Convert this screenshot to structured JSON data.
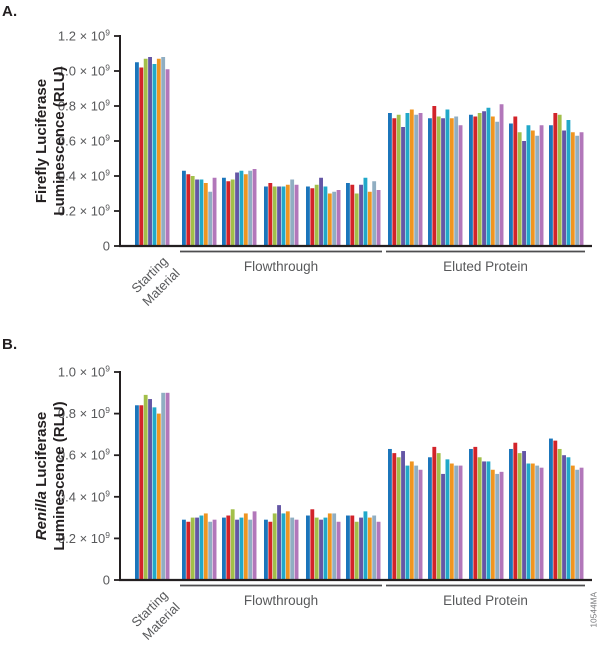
{
  "watermark": "10544MA",
  "chart_data": [
    {
      "panel_label": "A.",
      "type": "bar",
      "ylabel_lines": [
        [
          {
            "text": "Firefly Luciferase",
            "italic": false
          }
        ],
        [
          {
            "text": "Luminescence (RLU)",
            "italic": false
          }
        ]
      ],
      "ylim_e9": [
        0,
        1.2
      ],
      "grid": false,
      "legend": "none",
      "yticks": [
        {
          "value_e9": 1.2,
          "label": "1.2 × 10^9"
        },
        {
          "value_e9": 1.0,
          "label": "1.0 × 10^9"
        },
        {
          "value_e9": 0.8,
          "label": "0.8 × 10^9"
        },
        {
          "value_e9": 0.6,
          "label": "0.6 × 10^9"
        },
        {
          "value_e9": 0.4,
          "label": "0.4 × 10^9"
        },
        {
          "value_e9": 0.2,
          "label": "0.2 × 10^9"
        },
        {
          "value_e9": 0,
          "label": "0"
        }
      ],
      "series_colors": [
        "#1b75bb",
        "#d2232a",
        "#a2bf4a",
        "#6456a5",
        "#21a8c9",
        "#ef9521",
        "#90aec2",
        "#b277ba"
      ],
      "first_group_label_lines": [
        "Starting",
        "Material"
      ],
      "sections": [
        {
          "label": "Flowthrough",
          "from_group": 1,
          "to_group": 5
        },
        {
          "label": "Eluted Protein",
          "from_group": 6,
          "to_group": 10
        }
      ],
      "x_groups": [
        {
          "label": "Starting Material",
          "section": "",
          "values_e9": [
            1.05,
            1.02,
            1.07,
            1.08,
            1.04,
            1.07,
            1.08,
            1.01
          ]
        },
        {
          "label": "",
          "section": "Flowthrough",
          "values_e9": [
            0.43,
            0.41,
            0.4,
            0.38,
            0.38,
            0.36,
            0.31,
            0.39
          ]
        },
        {
          "label": "",
          "section": "Flowthrough",
          "values_e9": [
            0.39,
            0.37,
            0.38,
            0.42,
            0.43,
            0.41,
            0.43,
            0.44
          ]
        },
        {
          "label": "",
          "section": "Flowthrough",
          "values_e9": [
            0.34,
            0.36,
            0.34,
            0.34,
            0.34,
            0.35,
            0.38,
            0.35
          ]
        },
        {
          "label": "",
          "section": "Flowthrough",
          "values_e9": [
            0.34,
            0.33,
            0.35,
            0.39,
            0.34,
            0.3,
            0.31,
            0.32
          ]
        },
        {
          "label": "",
          "section": "Flowthrough",
          "values_e9": [
            0.36,
            0.35,
            0.3,
            0.35,
            0.39,
            0.31,
            0.37,
            0.32
          ]
        },
        {
          "label": "",
          "section": "Eluted Protein",
          "values_e9": [
            0.76,
            0.73,
            0.75,
            0.68,
            0.76,
            0.78,
            0.75,
            0.76
          ]
        },
        {
          "label": "",
          "section": "Eluted Protein",
          "values_e9": [
            0.73,
            0.8,
            0.74,
            0.73,
            0.78,
            0.73,
            0.74,
            0.69
          ]
        },
        {
          "label": "",
          "section": "Eluted Protein",
          "values_e9": [
            0.75,
            0.74,
            0.76,
            0.77,
            0.79,
            0.74,
            0.71,
            0.81
          ]
        },
        {
          "label": "",
          "section": "Eluted Protein",
          "values_e9": [
            0.7,
            0.74,
            0.65,
            0.6,
            0.69,
            0.66,
            0.63,
            0.69
          ]
        },
        {
          "label": "",
          "section": "Eluted Protein",
          "values_e9": [
            0.69,
            0.76,
            0.75,
            0.66,
            0.72,
            0.65,
            0.63,
            0.65
          ]
        }
      ]
    },
    {
      "panel_label": "B.",
      "type": "bar",
      "ylabel_lines": [
        [
          {
            "text": "Renilla",
            "italic": true
          },
          {
            "text": " Luciferase",
            "italic": false
          }
        ],
        [
          {
            "text": "Luminescence (RLU)",
            "italic": false
          }
        ]
      ],
      "ylim_e9": [
        0,
        1.0
      ],
      "grid": false,
      "legend": "none",
      "yticks": [
        {
          "value_e9": 1.0,
          "label": "1.0 × 10^9"
        },
        {
          "value_e9": 0.8,
          "label": "0.8 × 10^9"
        },
        {
          "value_e9": 0.6,
          "label": "0.6 × 10^9"
        },
        {
          "value_e9": 0.4,
          "label": "0.4 × 10^9"
        },
        {
          "value_e9": 0.2,
          "label": "0.2 × 10^9"
        },
        {
          "value_e9": 0,
          "label": "0"
        }
      ],
      "series_colors": [
        "#1b75bb",
        "#d2232a",
        "#a2bf4a",
        "#6456a5",
        "#21a8c9",
        "#ef9521",
        "#90aec2",
        "#b277ba"
      ],
      "first_group_label_lines": [
        "Starting",
        "Material"
      ],
      "sections": [
        {
          "label": "Flowthrough",
          "from_group": 1,
          "to_group": 5
        },
        {
          "label": "Eluted Protein",
          "from_group": 6,
          "to_group": 10
        }
      ],
      "x_groups": [
        {
          "label": "Starting Material",
          "section": "",
          "values_e9": [
            0.84,
            0.84,
            0.89,
            0.87,
            0.83,
            0.8,
            0.9,
            0.9
          ]
        },
        {
          "label": "",
          "section": "Flowthrough",
          "values_e9": [
            0.29,
            0.28,
            0.3,
            0.3,
            0.31,
            0.32,
            0.28,
            0.29
          ]
        },
        {
          "label": "",
          "section": "Flowthrough",
          "values_e9": [
            0.3,
            0.31,
            0.34,
            0.29,
            0.3,
            0.32,
            0.29,
            0.33
          ]
        },
        {
          "label": "",
          "section": "Flowthrough",
          "values_e9": [
            0.29,
            0.28,
            0.32,
            0.36,
            0.32,
            0.33,
            0.3,
            0.29
          ]
        },
        {
          "label": "",
          "section": "Flowthrough",
          "values_e9": [
            0.31,
            0.34,
            0.3,
            0.29,
            0.3,
            0.32,
            0.32,
            0.28
          ]
        },
        {
          "label": "",
          "section": "Flowthrough",
          "values_e9": [
            0.31,
            0.31,
            0.28,
            0.3,
            0.33,
            0.3,
            0.31,
            0.28
          ]
        },
        {
          "label": "",
          "section": "Eluted Protein",
          "values_e9": [
            0.63,
            0.61,
            0.59,
            0.62,
            0.55,
            0.57,
            0.55,
            0.53
          ]
        },
        {
          "label": "",
          "section": "Eluted Protein",
          "values_e9": [
            0.59,
            0.64,
            0.61,
            0.51,
            0.58,
            0.56,
            0.55,
            0.55
          ]
        },
        {
          "label": "",
          "section": "Eluted Protein",
          "values_e9": [
            0.63,
            0.64,
            0.59,
            0.57,
            0.57,
            0.53,
            0.51,
            0.52
          ]
        },
        {
          "label": "",
          "section": "Eluted Protein",
          "values_e9": [
            0.63,
            0.66,
            0.61,
            0.62,
            0.56,
            0.56,
            0.55,
            0.54
          ]
        },
        {
          "label": "",
          "section": "Eluted Protein",
          "values_e9": [
            0.68,
            0.67,
            0.63,
            0.6,
            0.59,
            0.55,
            0.53,
            0.54
          ]
        }
      ]
    }
  ]
}
